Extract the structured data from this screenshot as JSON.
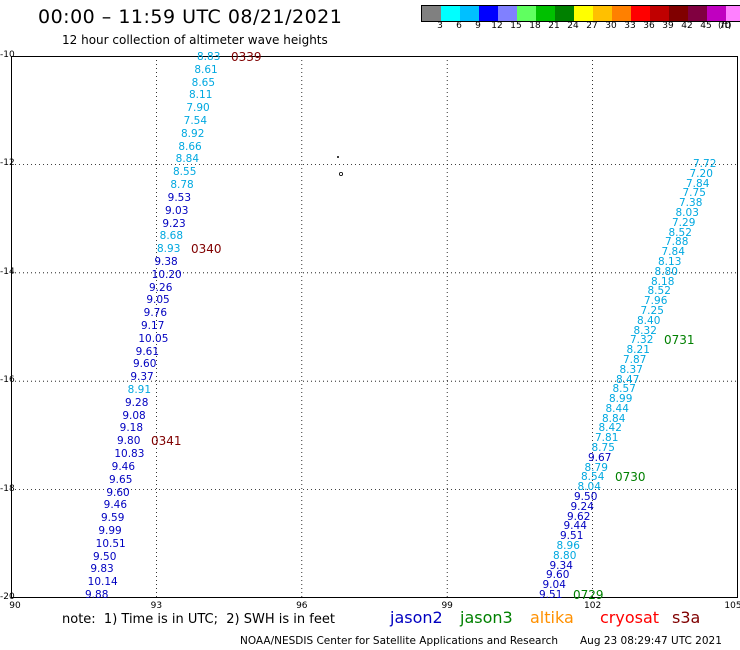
{
  "header": {
    "title": "00:00 – 11:59 UTC 08/21/2021",
    "subtitle": "12 hour collection of altimeter wave heights"
  },
  "legend": {
    "colors": [
      "#808080",
      "#00ffff",
      "#00c0ff",
      "#0000ff",
      "#8080ff",
      "#60ff60",
      "#00c000",
      "#008000",
      "#ffff00",
      "#ffc000",
      "#ff8000",
      "#ff0000",
      "#c00000",
      "#800000",
      "#800040",
      "#c000c0",
      "#ff80ff",
      "#000000"
    ],
    "labels": [
      "3",
      "6",
      "9",
      "12",
      "15",
      "18",
      "21",
      "24",
      "27",
      "30",
      "33",
      "36",
      "39",
      "42",
      "45",
      "70"
    ],
    "unit": "(ft)"
  },
  "map": {
    "lon_range": [
      90,
      105
    ],
    "lat_range": [
      -20,
      -10
    ],
    "x_ticks": [
      "90",
      "93",
      "96",
      "99",
      "102",
      "105"
    ],
    "y_ticks": [
      "-10",
      "-12",
      "-14",
      "-16",
      "-18",
      "-20"
    ],
    "palette": {
      "jason2": "#0000c0",
      "jason3": "#008000",
      "altika": "#ff9000",
      "cryosat": "#ff0000",
      "s3a": "#800000",
      "light": "#00a8e0",
      "track_label_green": "#008000"
    }
  },
  "track_left": {
    "values": [
      "8.83",
      "8.61",
      "8.65",
      "8.11",
      "7.90",
      "7.54",
      "8.92",
      "8.66",
      "8.84",
      "8.55",
      "8.78",
      "9.53",
      "9.03",
      "9.23",
      "8.68",
      "8.93",
      "9.38",
      "10.20",
      "9.26",
      "9.05",
      "9.76",
      "9.17",
      "10.05",
      "9.61",
      "9.60",
      "9.37",
      "8.91",
      "9.28",
      "9.08",
      "9.18",
      "9.80",
      "10.83",
      "9.46",
      "9.65",
      "9.60",
      "9.46",
      "9.59",
      "9.99",
      "10.51",
      "9.50",
      "9.83",
      "10.14",
      "9.88"
    ],
    "time_labels": [
      {
        "text": "0339",
        "i": 0
      },
      {
        "text": "0340",
        "i": 15
      },
      {
        "text": "0341",
        "i": 30
      }
    ]
  },
  "track_right": {
    "values": [
      "7.72",
      "7.20",
      "7.84",
      "7.75",
      "7.38",
      "8.03",
      "7.29",
      "8.52",
      "7.88",
      "7.84",
      "8.13",
      "8.80",
      "8.18",
      "8.52",
      "7.96",
      "7.25",
      "8.40",
      "8.32",
      "7.32",
      "8.21",
      "7.87",
      "8.37",
      "8.47",
      "8.57",
      "8.99",
      "8.44",
      "8.84",
      "8.42",
      "7.81",
      "8.75",
      "9.67",
      "8.79",
      "8.54",
      "8.04",
      "9.50",
      "9.24",
      "9.62",
      "9.44",
      "9.51",
      "8.96",
      "8.80",
      "9.34",
      "9.60",
      "9.04",
      "9.51"
    ],
    "time_labels": [
      {
        "text": "0731",
        "i": 18
      },
      {
        "text": "0730",
        "i": 32
      },
      {
        "text": "0729",
        "i": 44
      }
    ]
  },
  "footer": {
    "note": "note:  1) Time is in UTC;  2) SWH is in feet",
    "satellites": [
      {
        "name": "jason2",
        "color": "#0000c0",
        "left": 390
      },
      {
        "name": "jason3",
        "color": "#008000",
        "left": 460
      },
      {
        "name": "altika",
        "color": "#ff9000",
        "left": 530
      },
      {
        "name": "cryosat",
        "color": "#ff0000",
        "left": 600
      },
      {
        "name": "s3a",
        "color": "#800000",
        "left": 672
      }
    ],
    "credit": "NOAA/NESDIS Center for Satellite Applications and Research",
    "timestamp": "Aug 23 08:29:47 UTC 2021"
  }
}
